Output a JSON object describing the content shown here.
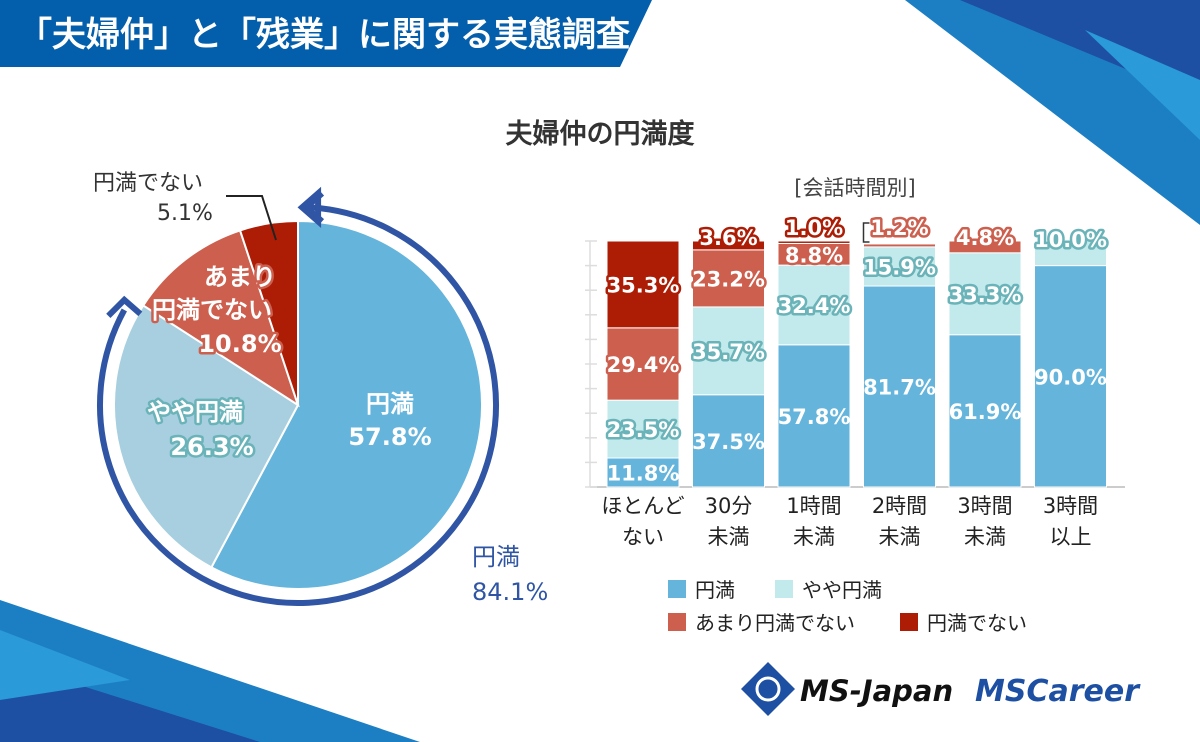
{
  "header": {
    "title": "「夫婦仲」と「残業」に関する実態調査"
  },
  "colors": {
    "header": "#035eab",
    "enman": "#64b4dc",
    "yaya_pie": "#a7cfdf",
    "yaya_bar": "#c2eaec",
    "amari": "#cd5f4e",
    "denai": "#ad1d05",
    "arc": "#2f55a4"
  },
  "chart_data": [
    {
      "type": "pie",
      "title": "夫婦仲の円満度",
      "slices": [
        {
          "label": "円満",
          "value": 57.8,
          "text": "57.8%"
        },
        {
          "label": "やや円満",
          "value": 26.3,
          "text": "26.3%"
        },
        {
          "label": "あまり円満でない",
          "label_lines": [
            "あまり",
            "円満でない"
          ],
          "value": 10.8,
          "text": "10.8%"
        },
        {
          "label": "円満でない",
          "value": 5.1,
          "text": "5.1%"
        }
      ],
      "annotation": {
        "label": "円満",
        "value": "84.1%"
      }
    },
    {
      "type": "bar",
      "stacked": true,
      "subtitle": "[会話時間別]",
      "categories": [
        [
          "ほとんど",
          "ない"
        ],
        [
          "30分",
          "未満"
        ],
        [
          "1時間",
          "未満"
        ],
        [
          "2時間",
          "未満"
        ],
        [
          "3時間",
          "未満"
        ],
        [
          "3時間",
          "以上"
        ]
      ],
      "ylim": [
        0,
        100
      ],
      "series": [
        {
          "name": "円満",
          "values": [
            11.8,
            37.5,
            57.8,
            81.7,
            61.9,
            90.0
          ]
        },
        {
          "name": "やや円満",
          "values": [
            23.5,
            35.7,
            32.4,
            15.9,
            33.3,
            10.0
          ]
        },
        {
          "name": "あまり円満でない",
          "values": [
            29.4,
            23.2,
            8.8,
            1.2,
            4.8,
            0
          ]
        },
        {
          "name": "円満でない",
          "values": [
            35.3,
            3.6,
            1.0,
            0,
            0,
            0
          ]
        }
      ],
      "legend": [
        "円満",
        "やや円満",
        "あまり円満でない",
        "円満でない"
      ]
    }
  ],
  "logos": {
    "ms_japan": "MS-Japan",
    "ms_career": "MSCareer"
  }
}
